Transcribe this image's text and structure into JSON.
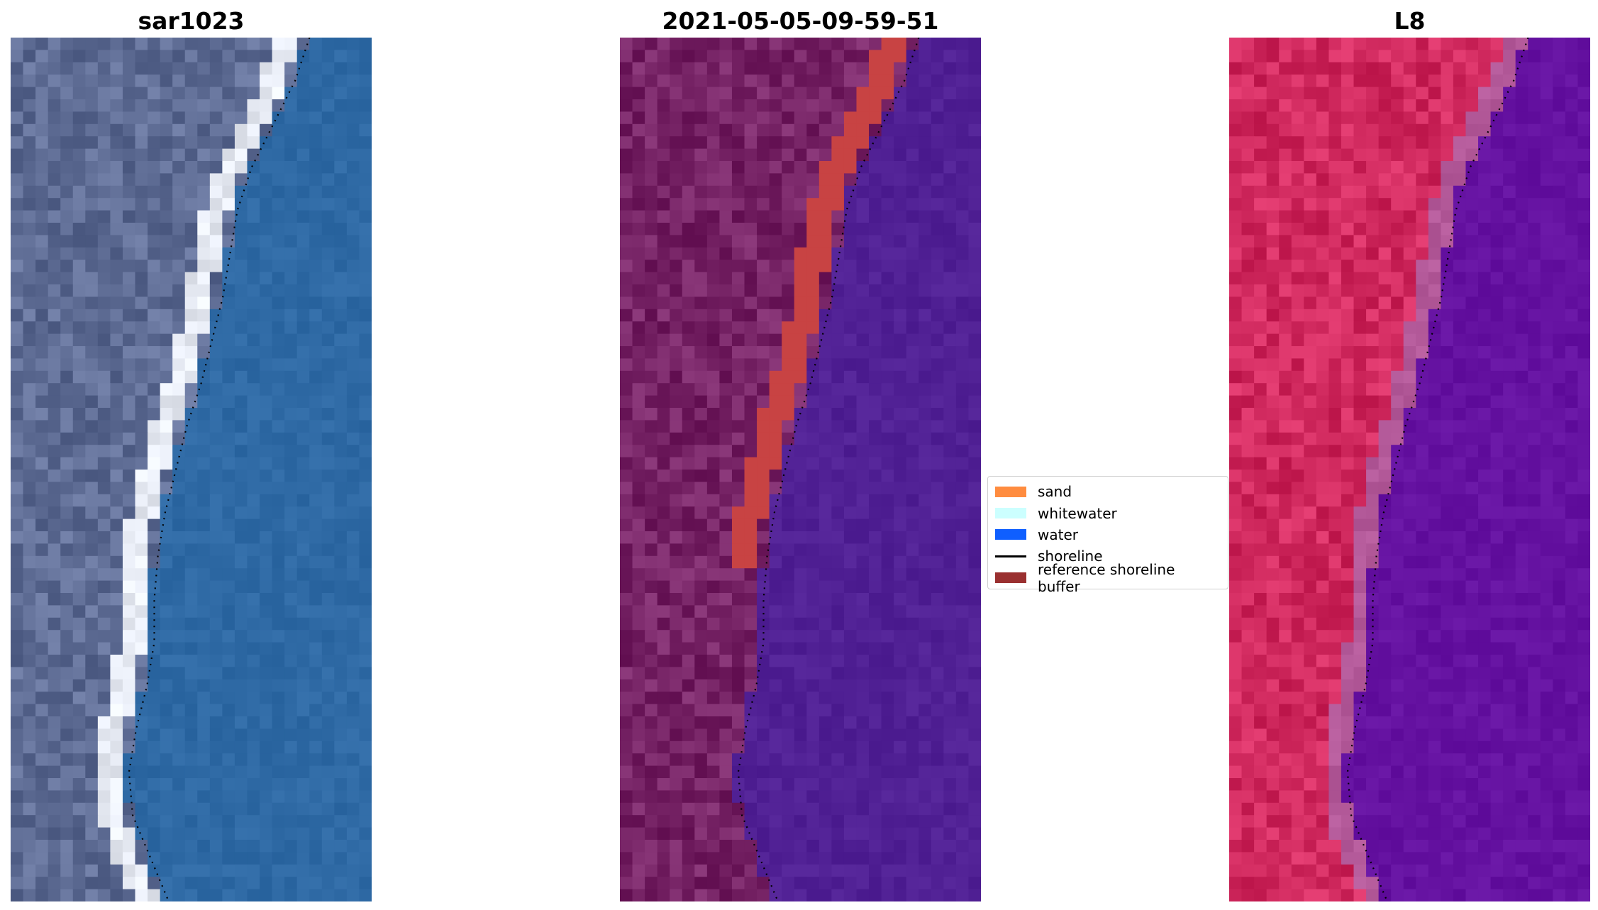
{
  "panels": [
    {
      "title": "sar1023",
      "style": "rgb"
    },
    {
      "title": "2021-05-05-09-59-51",
      "style": "classified"
    },
    {
      "title": "L8",
      "style": "falsecolor"
    }
  ],
  "legend": {
    "items": [
      {
        "label": "sand",
        "color": "#ff8c3f",
        "kind": "patch"
      },
      {
        "label": "whitewater",
        "color": "#ccffff",
        "kind": "patch"
      },
      {
        "label": "water",
        "color": "#0f5fff",
        "kind": "patch"
      },
      {
        "label": "shoreline",
        "color": "#000000",
        "kind": "line"
      },
      {
        "label": "reference shoreline buffer",
        "color": "#9a3030",
        "kind": "patch"
      }
    ]
  },
  "colors": {
    "land_rgb": "#5f6d95",
    "water_rgb": "#2f6aa5",
    "surf_rgb": "#e8ecf5",
    "land_classified": "#772466",
    "water_classified": "#512195",
    "buffer_classified": "#c84343",
    "land_falsecolor": "#d12a5f",
    "water_falsecolor": "#6512a1"
  }
}
